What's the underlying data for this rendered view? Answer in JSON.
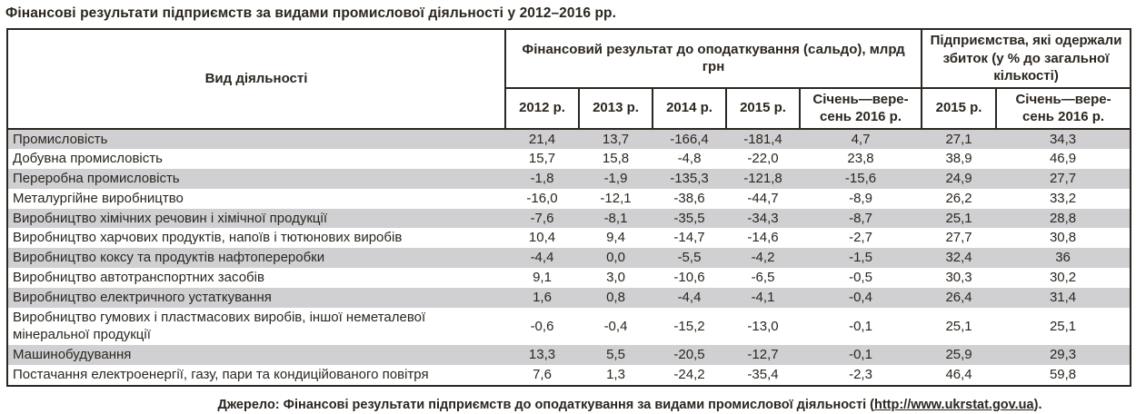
{
  "title": "Фінансові результати підприємств за видами промислової діяльності у 2012–2016 рр.",
  "table": {
    "activity_header": "Вид діяльності",
    "group1": "Фінансовий результат до оподаткування (сальдо), млрд грн",
    "group2": "Підприємства, які одержали збиток (у % до загальної кількості)",
    "year_cols": [
      "2012 р.",
      "2013 р.",
      "2014 р.",
      "2015 р.",
      "Січень—вере-сень 2016 р.",
      "2015 р.",
      "Січень—вере-сень 2016 р."
    ],
    "rows": [
      {
        "activity": "Промисловість",
        "values": [
          "21,4",
          "13,7",
          "-166,4",
          "-181,4",
          "4,7",
          "27,1",
          "34,3"
        ]
      },
      {
        "activity": "Добувна промисловість",
        "values": [
          "15,7",
          "15,8",
          "-4,8",
          "-22,0",
          "23,8",
          "38,9",
          "46,9"
        ]
      },
      {
        "activity": "Переробна промисловість",
        "values": [
          "-1,8",
          "-1,9",
          "-135,3",
          "-121,8",
          "-15,6",
          "24,9",
          "27,7"
        ]
      },
      {
        "activity": "Металургійне виробництво",
        "values": [
          "-16,0",
          "-12,1",
          "-38,6",
          "-44,7",
          "-8,9",
          "26,2",
          "33,2"
        ]
      },
      {
        "activity": "Виробництво хімічних речовин і хімічної продукції",
        "values": [
          "-7,6",
          "-8,1",
          "-35,5",
          "-34,3",
          "-8,7",
          "25,1",
          "28,8"
        ]
      },
      {
        "activity": "Виробництво харчових продуктів, напоїв і тютюнових виробів",
        "values": [
          "10,4",
          "9,4",
          "-14,7",
          "-14,6",
          "-2,7",
          "27,7",
          "30,8"
        ]
      },
      {
        "activity": "Виробництво коксу та продуктів нафтопереробки",
        "values": [
          "-4,4",
          "0,0",
          "-5,5",
          "-4,2",
          "-1,5",
          "32,4",
          "36"
        ]
      },
      {
        "activity": "Виробництво автотранспортних засобів",
        "values": [
          "9,1",
          "3,0",
          "-10,6",
          "-6,5",
          "-0,5",
          "30,3",
          "30,2"
        ]
      },
      {
        "activity": "Виробництво електричного устаткування",
        "values": [
          "1,6",
          "0,8",
          "-4,4",
          "-4,1",
          "-0,4",
          "26,4",
          "31,4"
        ]
      },
      {
        "activity": "Виробництво гумових і пластмасових виробів, іншої неметалевої мінеральної продукції",
        "values": [
          "-0,6",
          "-0,4",
          "-15,2",
          "-13,0",
          "-0,1",
          "25,1",
          "25,1"
        ]
      },
      {
        "activity": "Машинобудування",
        "values": [
          "13,3",
          "5,5",
          "-20,5",
          "-12,7",
          "-0,1",
          "25,9",
          "29,3"
        ]
      },
      {
        "activity": "Постачання електроенергії, газу, пари та кондиційованого повітря",
        "values": [
          "7,6",
          "1,3",
          "-24,2",
          "-35,4",
          "-2,3",
          "46,4",
          "59,8"
        ]
      }
    ],
    "striped_row_color": "#d0d0d2",
    "border_color": "#2b2620"
  },
  "footer": {
    "prefix": "Джерело: Фінансові результати підприємств до оподаткування за видами промислової діяльності (",
    "link": "http://www.ukrstat.gov.ua",
    "suffix": ")."
  }
}
